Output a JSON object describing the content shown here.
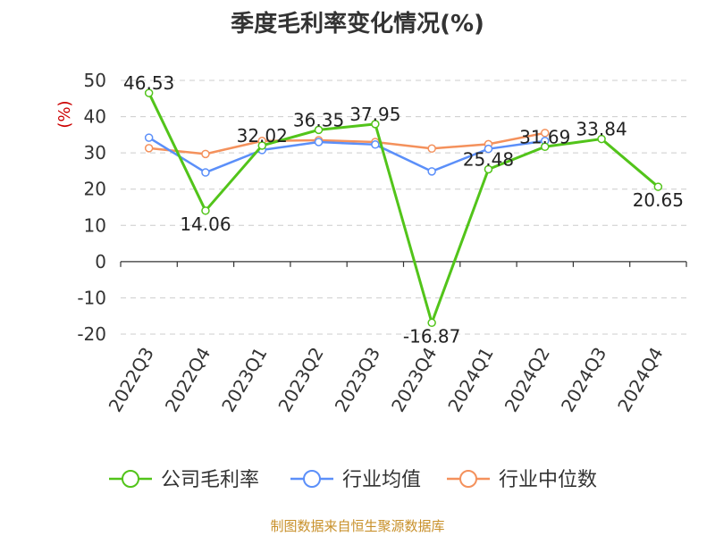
{
  "title": "季度毛利率变化情况(%)",
  "footer": "制图数据来自恒生聚源数据库",
  "chart_data": {
    "type": "line",
    "title": "季度毛利率变化情况(%)",
    "ylabel": "(%)",
    "xlabel": "",
    "categories": [
      "2022Q3",
      "2022Q4",
      "2023Q1",
      "2023Q2",
      "2023Q3",
      "2023Q4",
      "2024Q1",
      "2024Q2",
      "2024Q3",
      "2024Q4"
    ],
    "ylim": [
      -20,
      50
    ],
    "yticks": [
      -20,
      -10,
      0,
      10,
      20,
      30,
      40,
      50
    ],
    "grid": true,
    "legend_position": "bottom",
    "series": [
      {
        "name": "公司毛利率",
        "color": "#52c41a",
        "labeled": true,
        "values": [
          46.53,
          14.06,
          32.02,
          36.35,
          37.95,
          -16.87,
          25.48,
          31.69,
          33.84,
          20.65
        ]
      },
      {
        "name": "行业均值",
        "color": "#5b8ff9",
        "labeled": false,
        "values": [
          34.2,
          24.6,
          30.8,
          33.0,
          32.3,
          24.9,
          31.1,
          33.3,
          null,
          null
        ]
      },
      {
        "name": "行业中位数",
        "color": "#f4915c",
        "labeled": false,
        "values": [
          31.3,
          29.7,
          33.3,
          33.5,
          33.0,
          31.2,
          32.4,
          35.5,
          null,
          null
        ]
      }
    ]
  }
}
